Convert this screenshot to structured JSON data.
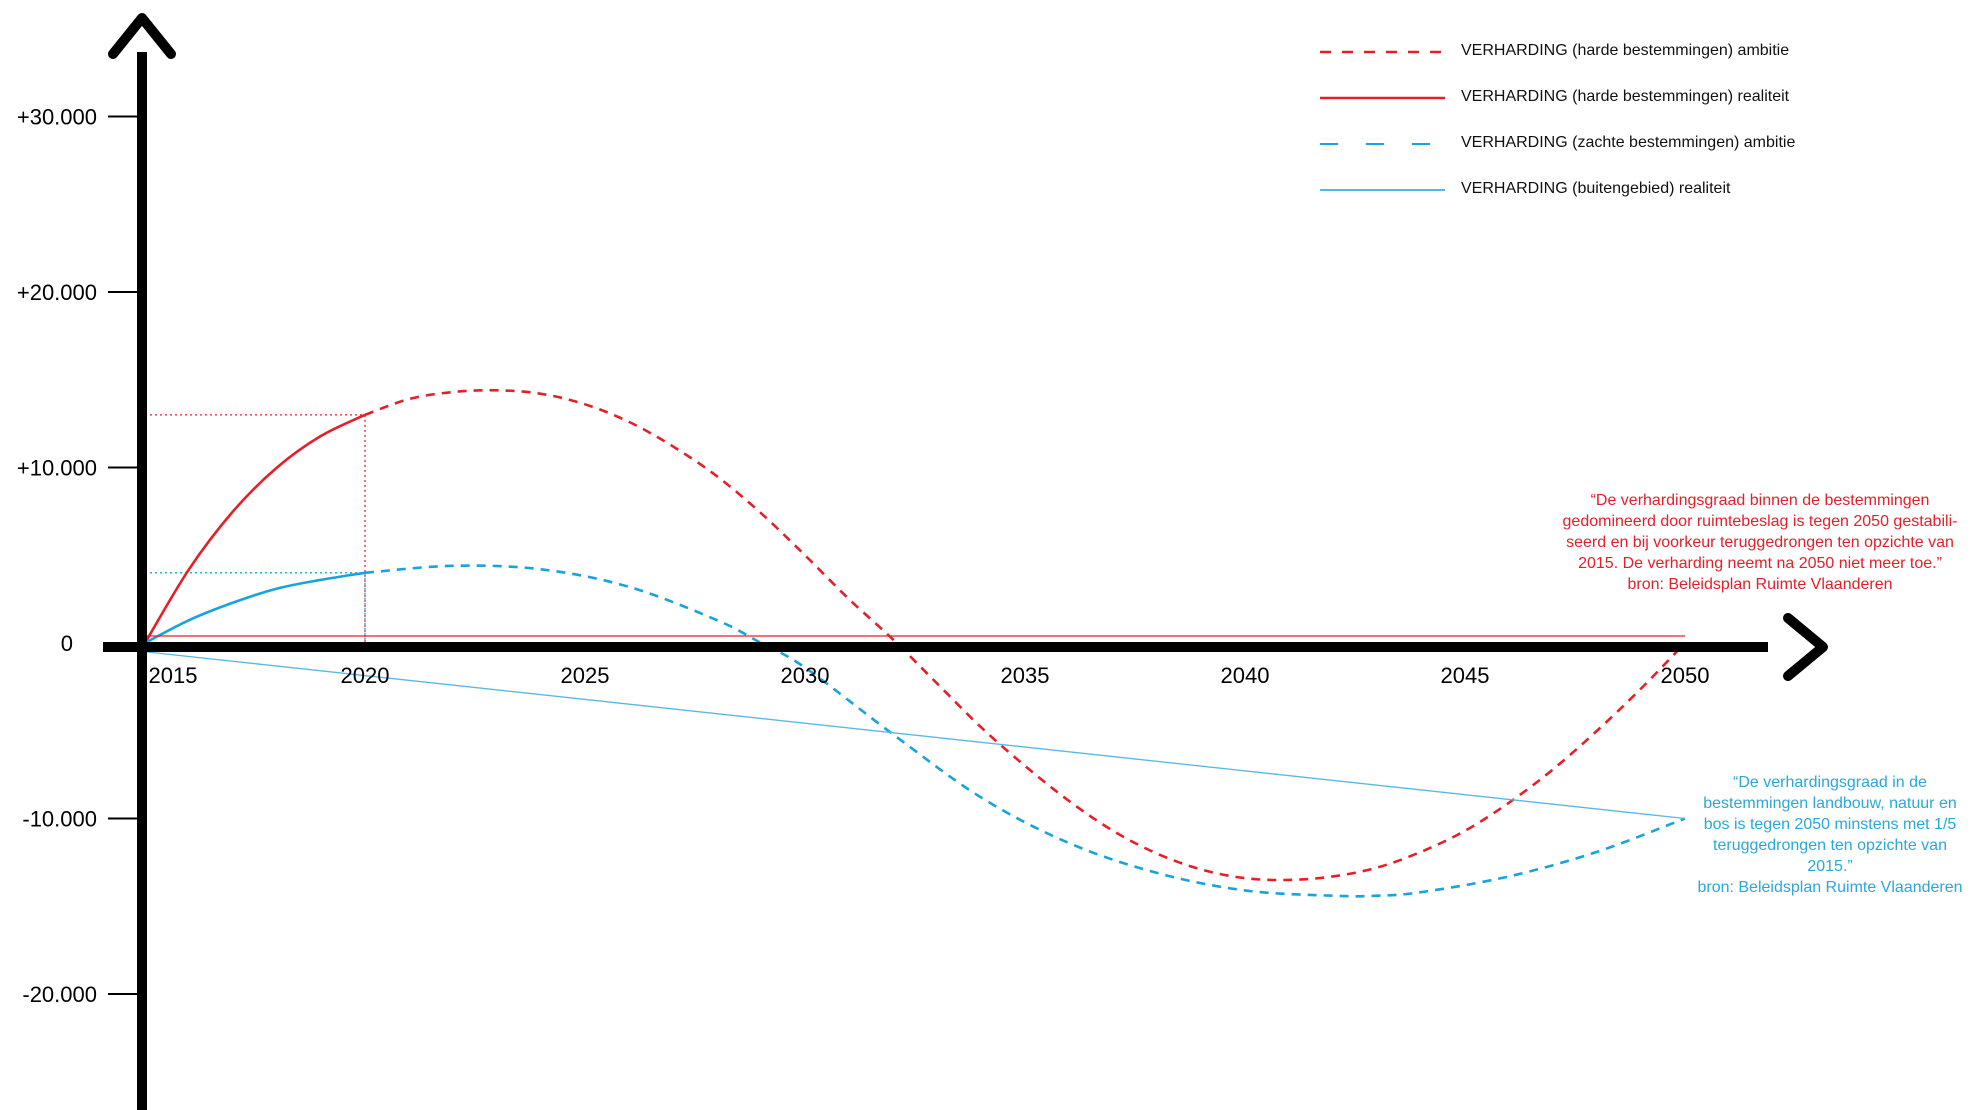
{
  "chart_data": {
    "type": "line",
    "title": "",
    "xlabel": "",
    "ylabel": "",
    "xlim": [
      2014,
      2052
    ],
    "ylim": [
      -27000,
      33000
    ],
    "x_ticks": [
      {
        "value": 2015,
        "label": "2015"
      },
      {
        "value": 2020,
        "label": "2020"
      },
      {
        "value": 2025,
        "label": "2025"
      },
      {
        "value": 2030,
        "label": "2030"
      },
      {
        "value": 2035,
        "label": "2035"
      },
      {
        "value": 2040,
        "label": "2040"
      },
      {
        "value": 2045,
        "label": "2045"
      },
      {
        "value": 2050,
        "label": "2050"
      }
    ],
    "y_ticks": [
      {
        "value": 30000,
        "label": "+30.000"
      },
      {
        "value": 20000,
        "label": "+20.000"
      },
      {
        "value": 10000,
        "label": "+10.000"
      },
      {
        "value": 0,
        "label": "0"
      },
      {
        "value": -10000,
        "label": "-10.000"
      },
      {
        "value": -20000,
        "label": "-20.000"
      }
    ],
    "series": [
      {
        "name": "VERHARDING (harde bestemmingen) ambitie",
        "color": "#e3202a",
        "style": "dashed",
        "x": [
          2020,
          2021,
          2022,
          2023,
          2024,
          2025,
          2026,
          2027,
          2028,
          2029,
          2030,
          2031,
          2032,
          2033,
          2034,
          2035,
          2036,
          2037,
          2038,
          2039,
          2040,
          2041,
          2042,
          2043,
          2044,
          2045,
          2046,
          2047,
          2048,
          2049,
          2050
        ],
        "y": [
          13000,
          13900,
          14300,
          14400,
          14200,
          13600,
          12600,
          11200,
          9500,
          7400,
          5000,
          2500,
          200,
          -2300,
          -4800,
          -7000,
          -9000,
          -10700,
          -12000,
          -12900,
          -13400,
          -13500,
          -13300,
          -12800,
          -11900,
          -10700,
          -9100,
          -7200,
          -5000,
          -2600,
          0
        ]
      },
      {
        "name": "VERHARDING (harde bestemmingen) realiteit",
        "color": "#e3202a",
        "style": "solid",
        "x": [
          2015,
          2016,
          2017,
          2018,
          2019,
          2020
        ],
        "y": [
          0,
          4200,
          7500,
          10000,
          11800,
          13000
        ]
      },
      {
        "name": "VERHARDING (zachte bestemmingen) ambitie",
        "color": "#19a3dc",
        "style": "dashed",
        "x": [
          2020,
          2022,
          2024,
          2026,
          2028,
          2029,
          2030,
          2032,
          2034,
          2036,
          2038,
          2040,
          2042,
          2043,
          2044,
          2046,
          2048,
          2050
        ],
        "y": [
          4000,
          4400,
          4200,
          3200,
          1300,
          0,
          -1400,
          -5200,
          -8800,
          -11400,
          -13100,
          -14100,
          -14400,
          -14400,
          -14200,
          -13300,
          -11900,
          -10000
        ]
      },
      {
        "name": "VERHARDING (buitengebied) realiteit",
        "color": "#19a3dc",
        "style": "solid",
        "x": [
          2015,
          2016,
          2017,
          2018,
          2019,
          2020
        ],
        "y": [
          0,
          1300,
          2300,
          3100,
          3600,
          4000
        ]
      },
      {
        "name": "",
        "color": "#5bb8e4",
        "style": "thin-solid",
        "x": [
          2015,
          2050
        ],
        "y": [
          -500,
          -10000
        ]
      },
      {
        "name": "",
        "color": "#e3202a",
        "style": "thin-solid",
        "x": [
          2015,
          2050
        ],
        "y": [
          400,
          400
        ]
      }
    ],
    "reference_lines": [
      {
        "color": "#e3202a",
        "x": 2020,
        "y": 13000
      },
      {
        "color": "#19a3dc",
        "x": 2020,
        "y": 4000
      }
    ],
    "grid": false,
    "legend_position": "top-right"
  },
  "legend": {
    "items": [
      {
        "label": "VERHARDING (harde bestemmingen) ambitie",
        "color": "#e3202a",
        "style": "dashed"
      },
      {
        "label": "VERHARDING (harde bestemmingen) realiteit",
        "color": "#e3202a",
        "style": "solid"
      },
      {
        "label": "VERHARDING (zachte bestemmingen) ambitie",
        "color": "#19a3dc",
        "style": "longdash"
      },
      {
        "label": "VERHARDING (buitengebied) realiteit",
        "color": "#19a3dc",
        "style": "solid"
      }
    ]
  },
  "annotations": {
    "red_quote": [
      "“De verhardingsgraad binnen de bestemmingen",
      "gedomineerd door ruimtebeslag is tegen 2050 gestabili-",
      "seerd en bij voorkeur teruggedrongen ten opzichte van",
      "2015. De verharding neemt na 2050 niet meer toe.”",
      "bron: Beleidsplan Ruimte Vlaanderen"
    ],
    "blue_quote": [
      "“De verhardingsgraad in de",
      "bestemmingen landbouw, natuur en",
      "bos is tegen 2050 minstens met 1/5",
      "teruggedrongen ten opzichte van",
      "2015.”",
      "bron: Beleidsplan Ruimte Vlaanderen"
    ]
  }
}
